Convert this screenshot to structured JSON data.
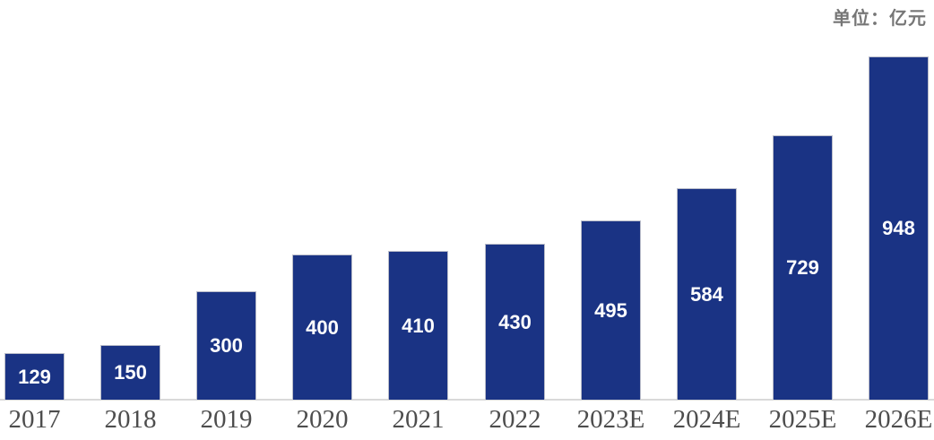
{
  "unit_label": "单位：亿元",
  "colors": {
    "bar_fill": "#1a3384",
    "bar_border": "#b9bcc9",
    "axis_line": "#d9d9d9",
    "value_label_text": "#ffffff",
    "year_label_text": "#4d4d4d",
    "unit_label_text": "#767676",
    "background": "#ffffff"
  },
  "chart_data": {
    "type": "bar",
    "title": "",
    "unit": "亿元",
    "categories": [
      "2017",
      "2018",
      "2019",
      "2020",
      "2021",
      "2022",
      "2023E",
      "2024E",
      "2025E",
      "2026E"
    ],
    "values": [
      129,
      150,
      300,
      400,
      410,
      430,
      495,
      584,
      729,
      948
    ],
    "series_name": "",
    "xlabel": "",
    "ylabel": "",
    "ylim": [
      0,
      950
    ],
    "grid": "off",
    "legend": "none",
    "y_axis_visible": false,
    "data_label_position": "inside-center"
  }
}
